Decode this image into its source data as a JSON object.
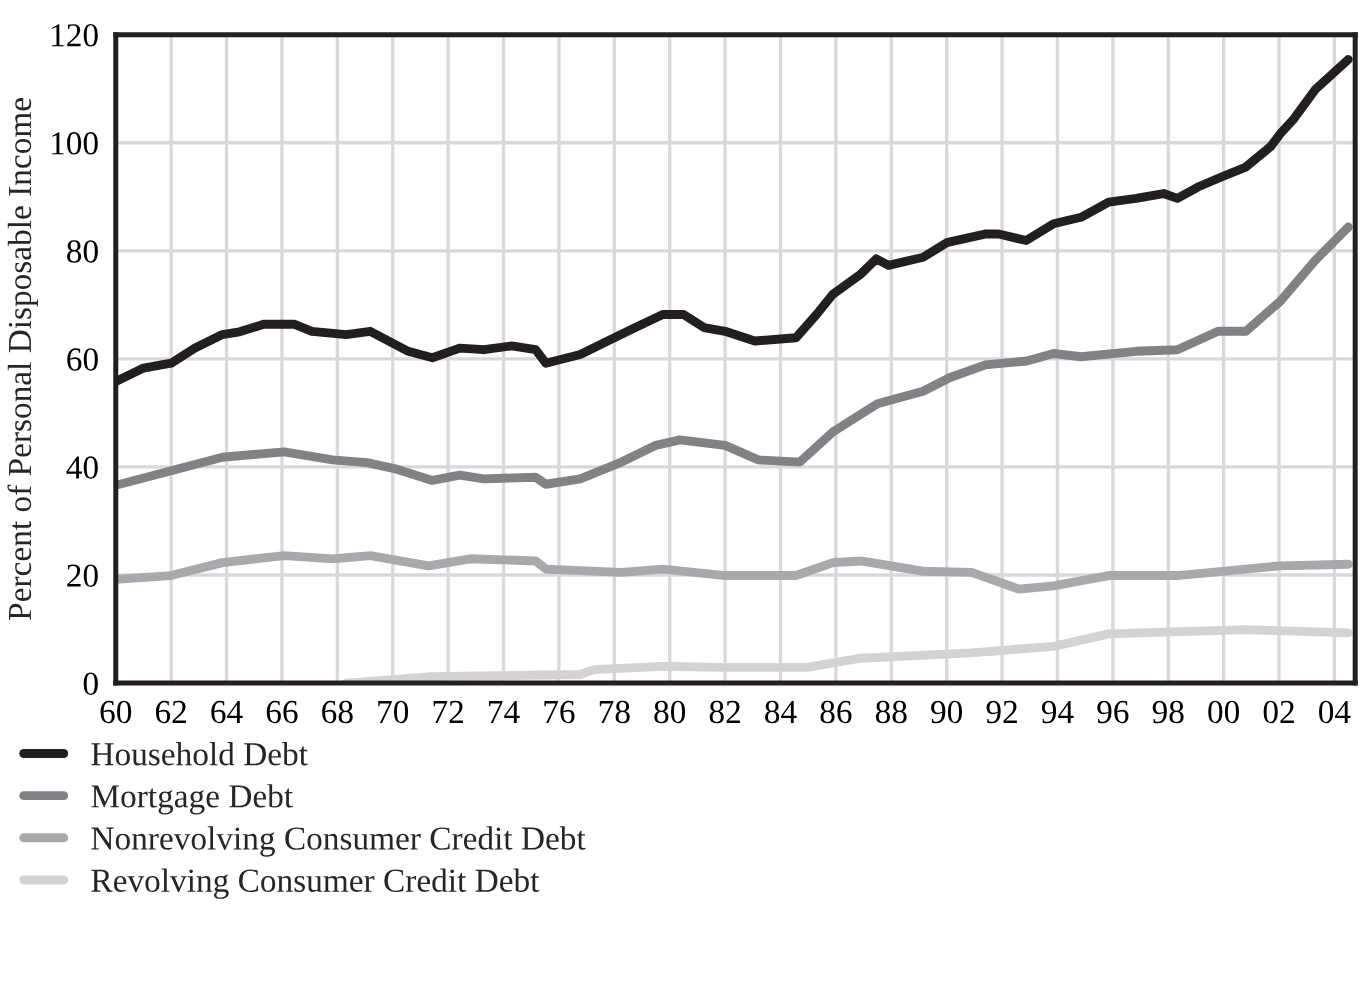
{
  "chart_data": {
    "type": "line",
    "ylabel": "Percent of Personal Disposable Income",
    "xlim": [
      1960,
      2004.75
    ],
    "ylim": [
      0,
      120
    ],
    "yticks": [
      0,
      20,
      40,
      60,
      80,
      100,
      120
    ],
    "xticks": [
      {
        "value": 1960,
        "label": "60"
      },
      {
        "value": 1962,
        "label": "62"
      },
      {
        "value": 1964,
        "label": "64"
      },
      {
        "value": 1966,
        "label": "66"
      },
      {
        "value": 1968,
        "label": "68"
      },
      {
        "value": 1970,
        "label": "70"
      },
      {
        "value": 1972,
        "label": "72"
      },
      {
        "value": 1974,
        "label": "74"
      },
      {
        "value": 1976,
        "label": "76"
      },
      {
        "value": 1978,
        "label": "78"
      },
      {
        "value": 1980,
        "label": "80"
      },
      {
        "value": 1982,
        "label": "82"
      },
      {
        "value": 1984,
        "label": "84"
      },
      {
        "value": 1986,
        "label": "86"
      },
      {
        "value": 1988,
        "label": "88"
      },
      {
        "value": 1990,
        "label": "90"
      },
      {
        "value": 1992,
        "label": "92"
      },
      {
        "value": 1994,
        "label": "94"
      },
      {
        "value": 1996,
        "label": "96"
      },
      {
        "value": 1998,
        "label": "98"
      },
      {
        "value": 2000,
        "label": "00"
      },
      {
        "value": 2002,
        "label": "02"
      },
      {
        "value": 2004,
        "label": "04"
      }
    ],
    "grid": true,
    "legend": "bottom",
    "line_style": "solid",
    "marker": "none",
    "series": [
      {
        "name": "Household Debt",
        "color": "#231f20",
        "x": [
          1960,
          1961.0,
          1962.0,
          1962.86,
          1963.85,
          1964.47,
          1965.34,
          1966.46,
          1967.08,
          1968.32,
          1969.19,
          1970.56,
          1971.43,
          1972.42,
          1973.29,
          1974.29,
          1975.16,
          1975.53,
          1976.77,
          1977.76,
          1978.76,
          1979.75,
          1980.5,
          1981.24,
          1982.0,
          1983.07,
          1984.56,
          1985.3,
          1985.9,
          1986.9,
          1987.46,
          1987.9,
          1989.15,
          1990.0,
          1991.38,
          1991.88,
          1992.87,
          1993.86,
          1994.85,
          1995.85,
          1996.84,
          1997.83,
          1998.33,
          1999.07,
          1999.94,
          2000.8,
          2001.7,
          2002.05,
          2002.5,
          2003.3,
          2004.5
        ],
        "values": [
          55.8,
          58.3,
          59.2,
          62,
          64.5,
          65,
          66.4,
          66.4,
          65.1,
          64.5,
          65.1,
          61.4,
          60.2,
          62,
          61.7,
          62.4,
          61.7,
          59.2,
          60.8,
          63.3,
          65.8,
          68.2,
          68.2,
          65.8,
          65.1,
          63.3,
          63.9,
          68.2,
          72,
          75.7,
          78.5,
          77.3,
          78.8,
          81.5,
          83.1,
          83.1,
          81.9,
          85,
          86.2,
          89,
          89.7,
          90.6,
          89.7,
          91.8,
          93.7,
          95.5,
          99.3,
          101.7,
          104.2,
          109.8,
          115.4
        ]
      },
      {
        "name": "Mortgage Debt",
        "color": "#808285",
        "x": [
          1960,
          1962.0,
          1963.85,
          1966.08,
          1967.83,
          1969.07,
          1970.06,
          1971.43,
          1972.42,
          1973.29,
          1975.16,
          1975.53,
          1976.77,
          1978.26,
          1979.5,
          1980.37,
          1982.0,
          1983.2,
          1984.7,
          1985.9,
          1987.5,
          1989.15,
          1990.1,
          1991.4,
          1992.9,
          1993.86,
          1994.85,
          1996.84,
          1998.33,
          1999.8,
          2000.8,
          2002.05,
          2003.3,
          2004.5
        ],
        "values": [
          36.6,
          39.3,
          41.8,
          42.8,
          41.3,
          40.8,
          39.7,
          37.5,
          38.5,
          37.8,
          38.1,
          36.8,
          37.8,
          40.9,
          44,
          45,
          44,
          41.3,
          40.9,
          46.5,
          51.7,
          54,
          56.5,
          58.9,
          59.6,
          61,
          60.4,
          61.4,
          61.7,
          65.1,
          65.1,
          70.7,
          78.2,
          84.4
        ]
      },
      {
        "name": "Nonrevolving Consumer Credit Debt",
        "color": "#a7a9ac",
        "x": [
          1960,
          1962.0,
          1963.85,
          1966.08,
          1967.83,
          1969.19,
          1971.3,
          1972.8,
          1975.16,
          1975.53,
          1978.26,
          1979.75,
          1982.0,
          1984.56,
          1985.9,
          1986.9,
          1989.15,
          1990.9,
          1992.6,
          1993.86,
          1995.85,
          1998.33,
          2000.8,
          2002.05,
          2004.5
        ],
        "values": [
          19.2,
          19.9,
          22.3,
          23.6,
          23,
          23.6,
          21.7,
          23,
          22.6,
          21.1,
          20.5,
          21.1,
          19.9,
          19.9,
          22.3,
          22.6,
          20.7,
          20.5,
          17.4,
          18,
          19.9,
          19.9,
          21.1,
          21.7,
          22
        ]
      },
      {
        "name": "Revolving Consumer Credit Debt",
        "color": "#d1d3d4",
        "x": [
          1968.32,
          1971.43,
          1976.77,
          1977.26,
          1979.75,
          1982.0,
          1984.96,
          1986.9,
          1990.9,
          1993.86,
          1995.85,
          2000.8,
          2004.5
        ],
        "values": [
          0,
          1.2,
          1.6,
          2.5,
          3.1,
          2.9,
          2.9,
          4.6,
          5.6,
          6.8,
          9.1,
          9.9,
          9.3
        ]
      }
    ]
  }
}
